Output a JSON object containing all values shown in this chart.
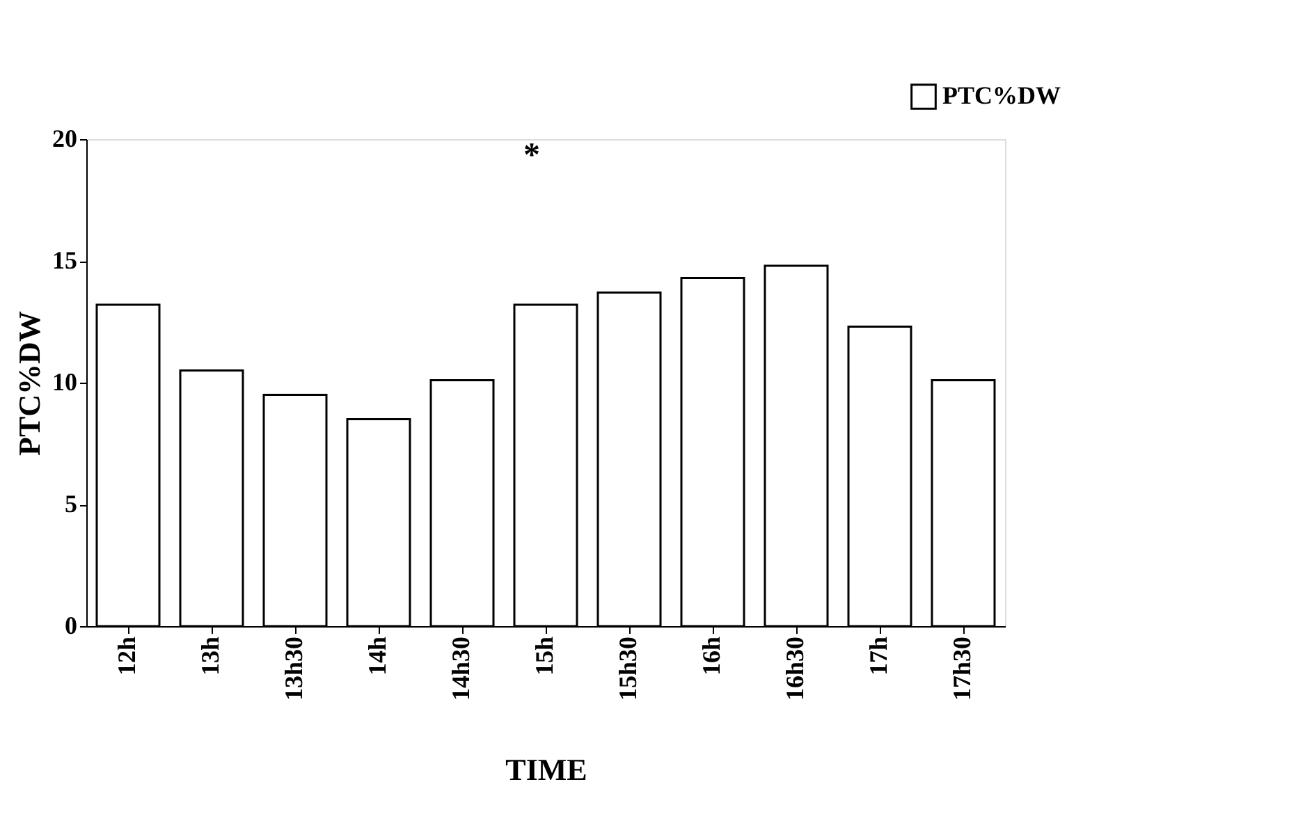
{
  "chart_data": {
    "type": "bar",
    "xlabel": "TIME",
    "ylabel": "PTC%DW",
    "categories": [
      "12h",
      "13h",
      "13h30",
      "14h",
      "14h30",
      "15h",
      "15h30",
      "16h",
      "16h30",
      "17h",
      "17h30"
    ],
    "series": [
      {
        "name": "PTC%DW",
        "color": "#ffffff",
        "values": [
          13.2,
          10.5,
          9.5,
          8.5,
          10.1,
          13.2,
          13.7,
          14.3,
          14.8,
          12.3,
          10.1
        ]
      }
    ],
    "ylim": [
      0,
      20
    ],
    "yticks": [
      0,
      5,
      10,
      15,
      20
    ],
    "grid": false,
    "legend": "top right",
    "annotations": [
      "*"
    ]
  }
}
